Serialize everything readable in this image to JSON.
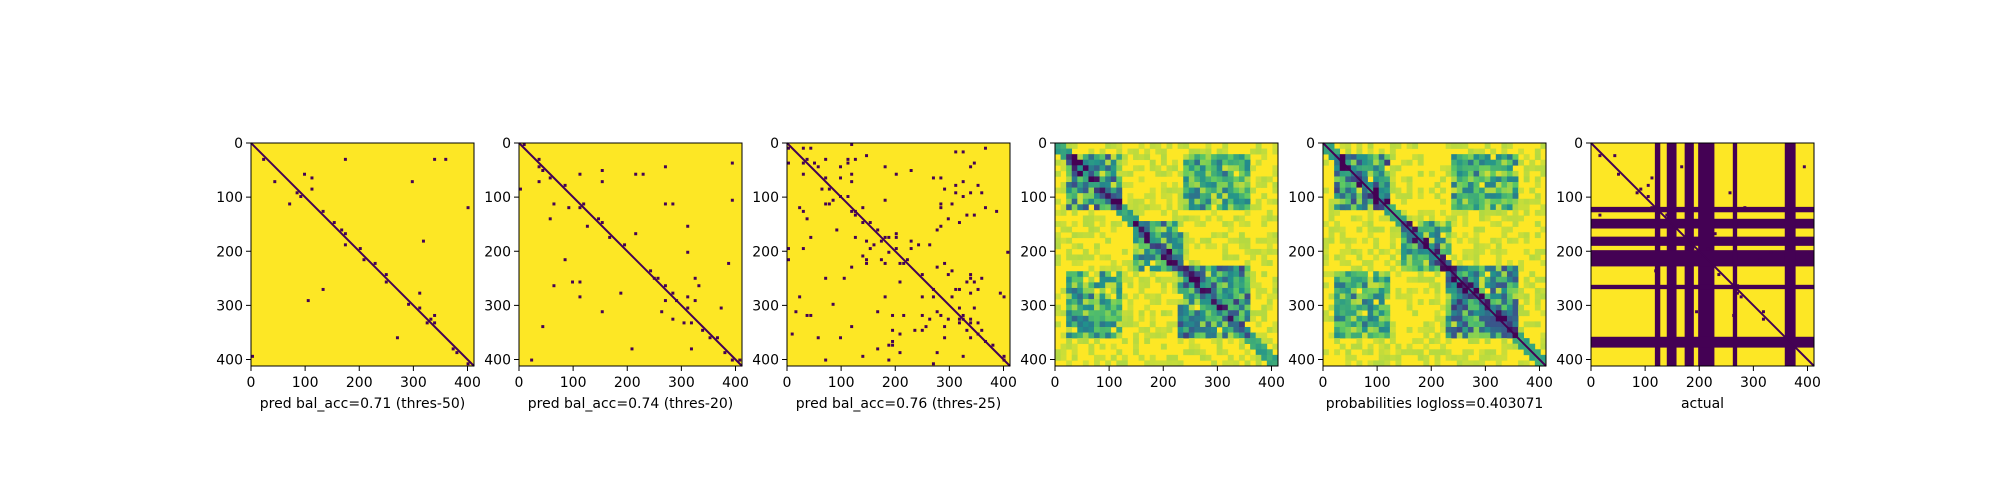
{
  "chart_data": [
    {
      "type": "heatmap",
      "xlabel": "pred bal_acc=0.71 (thres-50)",
      "ylabel": "",
      "xlim": [
        0,
        412
      ],
      "ylim": [
        412,
        0
      ],
      "x_ticks": [
        0,
        100,
        200,
        300,
        400
      ],
      "y_ticks": [
        0,
        100,
        200,
        300,
        400
      ],
      "colormap": "viridis",
      "values": "binary",
      "colors": {
        "high": "#fde725",
        "low": "#440154"
      },
      "pattern": {
        "diagonal": true,
        "speckle": 0.002,
        "blocks": [
          [
            160,
            200,
            160,
            200,
            0.04
          ],
          [
            0,
            120,
            0,
            120,
            0.01
          ],
          [
            270,
            340,
            270,
            340,
            0.02
          ]
        ],
        "bars": []
      }
    },
    {
      "type": "heatmap",
      "xlabel": "pred bal_acc=0.74 (thres-20)",
      "ylabel": "",
      "xlim": [
        0,
        412
      ],
      "ylim": [
        412,
        0
      ],
      "x_ticks": [
        0,
        100,
        200,
        300,
        400
      ],
      "y_ticks": [
        0,
        100,
        200,
        300,
        400
      ],
      "colormap": "viridis",
      "values": "binary",
      "colors": {
        "high": "#fde725",
        "low": "#440154"
      },
      "pattern": {
        "diagonal": true,
        "speckle": 0.005,
        "blocks": [
          [
            160,
            220,
            160,
            220,
            0.06
          ],
          [
            20,
            120,
            20,
            120,
            0.03
          ],
          [
            260,
            340,
            260,
            340,
            0.05
          ]
        ],
        "bars": []
      }
    },
    {
      "type": "heatmap",
      "xlabel": "pred bal_acc=0.76 (thres-25)",
      "ylabel": "",
      "xlim": [
        0,
        412
      ],
      "ylim": [
        412,
        0
      ],
      "x_ticks": [
        0,
        100,
        200,
        300,
        400
      ],
      "y_ticks": [
        0,
        100,
        200,
        300,
        400
      ],
      "colormap": "viridis",
      "values": "binary",
      "colors": {
        "high": "#fde725",
        "low": "#440154"
      },
      "pattern": {
        "diagonal": true,
        "speckle": 0.02,
        "blocks": [
          [
            140,
            230,
            140,
            230,
            0.1
          ],
          [
            20,
            120,
            20,
            120,
            0.08
          ],
          [
            230,
            360,
            230,
            360,
            0.1
          ],
          [
            40,
            110,
            230,
            360,
            0.05
          ],
          [
            230,
            360,
            40,
            110,
            0.05
          ]
        ],
        "bars": []
      }
    },
    {
      "type": "heatmap",
      "xlabel": "",
      "ylabel": "",
      "xlim": [
        0,
        412
      ],
      "ylim": [
        412,
        0
      ],
      "x_ticks": [
        0,
        100,
        200,
        300,
        400
      ],
      "y_ticks": [
        0,
        100,
        200,
        300,
        400
      ],
      "colormap": "viridis",
      "values": "continuous",
      "colors": {
        "high": "#fde725",
        "low": "#440154"
      },
      "pattern": {
        "diagonal": false,
        "speckle": 0.0,
        "blocks": [
          [
            20,
            120,
            20,
            120,
            0.45
          ],
          [
            140,
            230,
            140,
            230,
            0.4
          ],
          [
            220,
            360,
            220,
            360,
            0.45
          ],
          [
            20,
            120,
            230,
            360,
            0.35
          ],
          [
            230,
            360,
            20,
            120,
            0.35
          ]
        ],
        "bars": []
      }
    },
    {
      "type": "heatmap",
      "xlabel": "probabilities logloss=0.403071",
      "ylabel": "",
      "xlim": [
        0,
        412
      ],
      "ylim": [
        412,
        0
      ],
      "x_ticks": [
        0,
        100,
        200,
        300,
        400
      ],
      "y_ticks": [
        0,
        100,
        200,
        300,
        400
      ],
      "colormap": "viridis",
      "values": "continuous",
      "colors": {
        "high": "#fde725",
        "low": "#440154"
      },
      "pattern": {
        "diagonal": true,
        "speckle": 0.0,
        "blocks": [
          [
            20,
            120,
            20,
            120,
            0.45
          ],
          [
            140,
            230,
            140,
            230,
            0.4
          ],
          [
            220,
            360,
            220,
            360,
            0.45
          ],
          [
            20,
            120,
            230,
            360,
            0.35
          ],
          [
            230,
            360,
            20,
            120,
            0.35
          ]
        ],
        "bars": []
      }
    },
    {
      "type": "heatmap",
      "xlabel": "actual",
      "ylabel": "",
      "xlim": [
        0,
        412
      ],
      "ylim": [
        412,
        0
      ],
      "x_ticks": [
        0,
        100,
        200,
        300,
        400
      ],
      "y_ticks": [
        0,
        100,
        200,
        300,
        400
      ],
      "colormap": "viridis",
      "values": "binary",
      "colors": {
        "high": "#fde725",
        "low": "#440154"
      },
      "pattern": {
        "diagonal": true,
        "speckle": 0.006,
        "blocks": [],
        "bars": [
          [
            118,
            128
          ],
          [
            140,
            158
          ],
          [
            173,
            190
          ],
          [
            198,
            228
          ],
          [
            262,
            270
          ],
          [
            358,
            378
          ]
        ]
      }
    }
  ]
}
